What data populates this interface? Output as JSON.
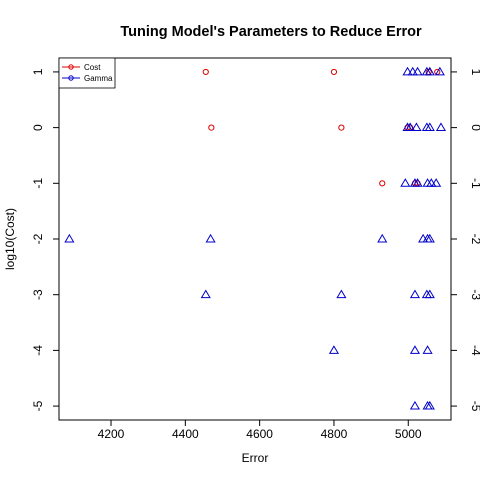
{
  "chart_data": {
    "type": "scatter",
    "title": "Tuning Model's Parameters to Reduce Error",
    "xlabel": "Error",
    "ylabel": "log10(Cost)",
    "xlim": [
      4060,
      5115
    ],
    "ylim": [
      -5.25,
      1.25
    ],
    "x_ticks": [
      4200,
      4400,
      4600,
      4800,
      5000
    ],
    "y_ticks": [
      1,
      0,
      -1,
      -2,
      -3,
      -4,
      -5
    ],
    "grid": false,
    "legend_position": "top-left",
    "series": [
      {
        "name": "Cost",
        "color": "#dd0000",
        "marker": "circle",
        "points": [
          {
            "x": 4455,
            "y": 1
          },
          {
            "x": 4800,
            "y": 1
          },
          {
            "x": 5055,
            "y": 1
          },
          {
            "x": 5078,
            "y": 1
          },
          {
            "x": 4470,
            "y": 0
          },
          {
            "x": 4820,
            "y": 0
          },
          {
            "x": 4998,
            "y": 0
          },
          {
            "x": 5005,
            "y": 0
          },
          {
            "x": 4930,
            "y": -1
          },
          {
            "x": 5018,
            "y": -1
          },
          {
            "x": 5025,
            "y": -1
          }
        ]
      },
      {
        "name": "Gamma",
        "color": "#0000cc",
        "marker": "triangle",
        "points": [
          {
            "x": 4998,
            "y": 1
          },
          {
            "x": 5012,
            "y": 1
          },
          {
            "x": 5025,
            "y": 1
          },
          {
            "x": 5050,
            "y": 1
          },
          {
            "x": 5058,
            "y": 1
          },
          {
            "x": 5085,
            "y": 1
          },
          {
            "x": 4998,
            "y": 0
          },
          {
            "x": 5005,
            "y": 0
          },
          {
            "x": 5022,
            "y": 0
          },
          {
            "x": 5050,
            "y": 0
          },
          {
            "x": 5058,
            "y": 0
          },
          {
            "x": 5088,
            "y": 0
          },
          {
            "x": 4992,
            "y": -1
          },
          {
            "x": 5018,
            "y": -1
          },
          {
            "x": 5025,
            "y": -1
          },
          {
            "x": 5052,
            "y": -1
          },
          {
            "x": 5062,
            "y": -1
          },
          {
            "x": 5075,
            "y": -1
          },
          {
            "x": 4088,
            "y": -2
          },
          {
            "x": 4468,
            "y": -2
          },
          {
            "x": 4930,
            "y": -2
          },
          {
            "x": 5040,
            "y": -2
          },
          {
            "x": 5052,
            "y": -2
          },
          {
            "x": 5058,
            "y": -2
          },
          {
            "x": 4455,
            "y": -3
          },
          {
            "x": 4820,
            "y": -3
          },
          {
            "x": 5018,
            "y": -3
          },
          {
            "x": 5050,
            "y": -3
          },
          {
            "x": 5058,
            "y": -3
          },
          {
            "x": 4800,
            "y": -4
          },
          {
            "x": 5018,
            "y": -4
          },
          {
            "x": 5052,
            "y": -4
          },
          {
            "x": 5018,
            "y": -5
          },
          {
            "x": 5052,
            "y": -5
          },
          {
            "x": 5058,
            "y": -5
          }
        ]
      }
    ]
  }
}
